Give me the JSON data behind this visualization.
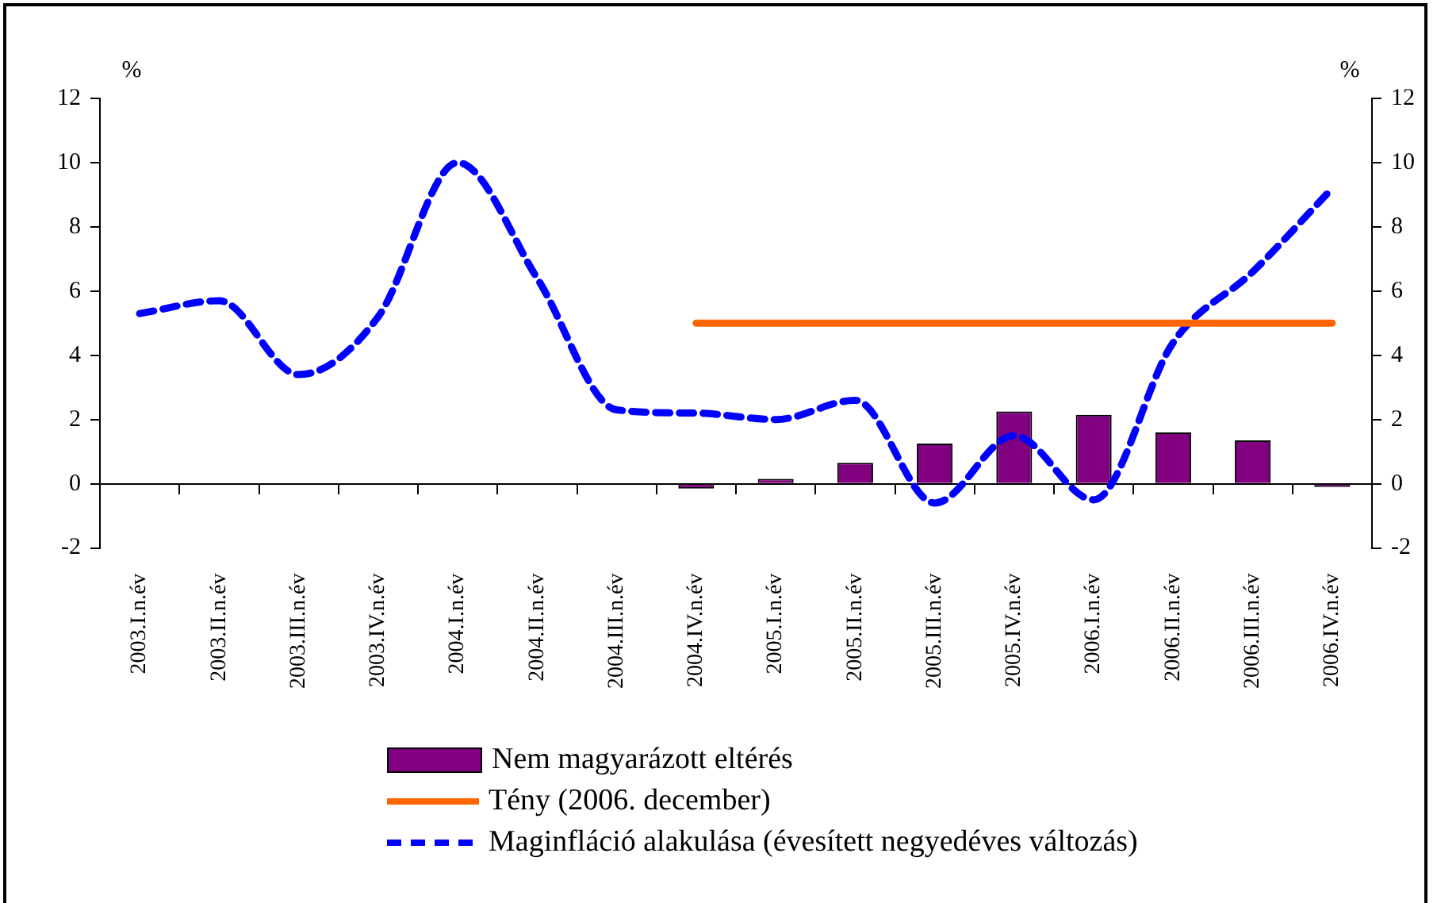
{
  "chart_data": {
    "type": "bar",
    "categories": [
      "2003.I.n.év",
      "2003.II.n.év",
      "2003.III.n.év",
      "2003.IV.n.év",
      "2004.I.n.év",
      "2004.II.n.év",
      "2004.III.n.év",
      "2004.IV.n.év",
      "2005.I.n.év",
      "2005.II.n.év",
      "2005.III.n.év",
      "2005.IV.n.év",
      "2006.I.n.év",
      "2006.II.n.év",
      "2006.III.n.év",
      "2006.IV.n.év"
    ],
    "series": [
      {
        "name": "Nem magyarázott eltérés",
        "color": "#800080",
        "values": [
          null,
          null,
          null,
          null,
          null,
          null,
          null,
          -0.15,
          0.15,
          0.65,
          1.25,
          2.25,
          2.15,
          1.6,
          1.35,
          -0.1
        ]
      },
      {
        "name": "Tény (2006. december)",
        "type": "line",
        "color": "#ff6600",
        "line_style": "solid",
        "values": [
          null,
          null,
          null,
          null,
          null,
          null,
          null,
          5,
          5,
          5,
          5,
          5,
          5,
          5,
          5,
          5
        ]
      },
      {
        "name": "Maginfláció alakulása (évesített negyedéves változás)",
        "type": "line",
        "color": "#0000ff",
        "line_style": "dashed",
        "values": [
          5.3,
          5.7,
          3.4,
          5.2,
          10.0,
          6.4,
          2.3,
          2.2,
          2.0,
          2.6,
          -0.6,
          1.5,
          -0.5,
          4.4,
          6.6,
          9.2
        ]
      }
    ],
    "ylabel": "%",
    "y2label": "%",
    "ylim": [
      -2,
      12
    ],
    "yticks": [
      -2,
      0,
      2,
      4,
      6,
      8,
      10,
      12
    ],
    "y2lim": [
      -2,
      12
    ],
    "y2ticks": [
      -2,
      0,
      2,
      4,
      6,
      8,
      10,
      12
    ],
    "legend": "bottom",
    "marker": "none"
  }
}
